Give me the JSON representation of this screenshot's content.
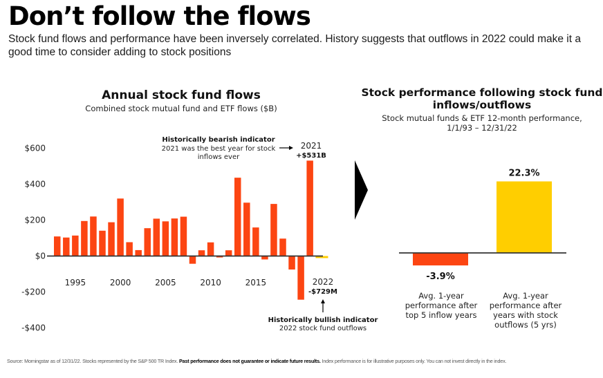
{
  "header": {
    "title": "Don’t follow the flows",
    "subtitle": "Stock fund flows and performance have been inversely correlated. History suggests that outflows in 2022 could make it a good time to consider adding to stock positions"
  },
  "colors": {
    "orange": "#FC4512",
    "yellow": "#FFCE00",
    "axis": "#333333",
    "arrow": "#000000"
  },
  "chart_data": [
    {
      "type": "bar",
      "title": "Annual stock fund flows",
      "subtitle": "Combined stock mutual fund and ETF flows ($B)",
      "xlabel": "",
      "ylabel": "",
      "ylim": [
        -400,
        600
      ],
      "yticks": [
        600,
        400,
        200,
        0,
        -200,
        -400
      ],
      "ytick_labels": [
        "$600",
        "$400",
        "$200",
        "$0",
        "-$200",
        "-$400"
      ],
      "xtick_labels": [
        "1995",
        "2000",
        "2005",
        "2010",
        "2015",
        "2022"
      ],
      "xtick_years": [
        1995,
        2000,
        2005,
        2010,
        2015,
        2022
      ],
      "grid": false,
      "categories": [
        1993,
        1994,
        1995,
        1996,
        1997,
        1998,
        1999,
        2000,
        2001,
        2002,
        2003,
        2004,
        2005,
        2006,
        2007,
        2008,
        2009,
        2010,
        2011,
        2012,
        2013,
        2014,
        2015,
        2016,
        2017,
        2018,
        2019,
        2020,
        2021,
        2022
      ],
      "values": [
        109,
        103,
        114,
        195,
        220,
        141,
        188,
        320,
        77,
        33,
        155,
        208,
        193,
        209,
        219,
        -43,
        32,
        76,
        -8,
        32,
        436,
        297,
        159,
        -19,
        290,
        97,
        -75,
        -243,
        531,
        -0.729
      ],
      "highlight": {
        "year": 2022,
        "color": "yellow"
      },
      "annotations": [
        {
          "year": 2021,
          "label": "2021",
          "value_label": "+$531B",
          "heading": "Historically bearish indicator",
          "text": [
            "2021 was the best year for stock",
            "inflows ever"
          ]
        },
        {
          "year": 2022,
          "label": "2022",
          "value_label": "-$729M",
          "heading": "Historically bullish indicator",
          "text": [
            "2022 stock fund outflows"
          ]
        }
      ]
    },
    {
      "type": "bar",
      "title": [
        "Stock performance following stock fund",
        "inflows/outflows"
      ],
      "subtitle": [
        "Stock mutual funds & ETF 12-month performance,",
        "1/1/93 – 12/31/22"
      ],
      "categories": [
        [
          "Avg. 1-year",
          "performance after",
          "top 5 inflow years"
        ],
        [
          "Avg. 1-year",
          "performance after",
          "years with stock",
          "outflows (5 yrs)"
        ]
      ],
      "values": [
        -3.9,
        22.3
      ],
      "value_labels": [
        "-3.9%",
        "22.3%"
      ],
      "bar_colors": [
        "orange",
        "yellow"
      ],
      "grid": false
    }
  ],
  "footer": {
    "source": "Source: Morningstar as of 12/31/22. Stocks represented by the S&P 500 TR Index.",
    "bold": "Past performance does not guarantee or indicate future results.",
    "disclaimer": "Index performance is for illustrative purposes only. You can not invest directly in the index."
  }
}
